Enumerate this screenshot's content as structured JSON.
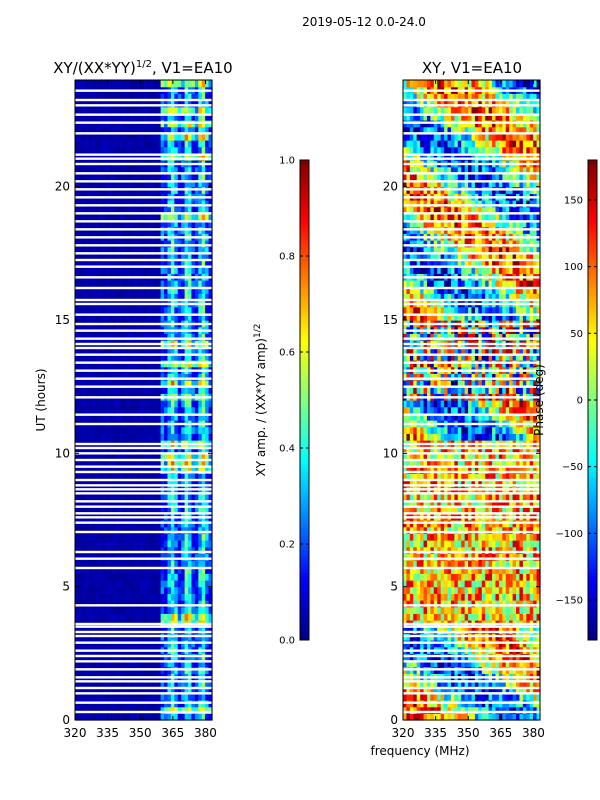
{
  "figure": {
    "suptitle": "2019-05-12 0.0-24.0",
    "shared_xlabel": "frequency (MHz)"
  },
  "chart_data": [
    {
      "type": "heatmap",
      "title_main": "XY/(XX*YY)",
      "title_sup": "1/2",
      "title_tail": ", V1=EA10",
      "xlabel": "",
      "ylabel": "UT (hours)",
      "xlim": [
        320,
        383
      ],
      "ylim": [
        0,
        24
      ],
      "xticks": [
        320,
        335,
        350,
        365,
        380
      ],
      "yticks": [
        0,
        5,
        10,
        15,
        20
      ],
      "colormap": "jet",
      "colorbar": {
        "label_main": "XY amp. / (XX*YY amp)",
        "label_sup": "1/2",
        "range": [
          0.0,
          1.0
        ],
        "ticks": [
          "0.0",
          "0.2",
          "0.4",
          "0.6",
          "0.8",
          "1.0"
        ]
      },
      "description_values": {
        "low_band_value": 0.02,
        "active_band_mhz": [
          360,
          382
        ],
        "active_band_value_range": [
          0.1,
          0.8
        ]
      }
    },
    {
      "type": "heatmap",
      "title": "XY, V1=EA10",
      "xlabel": "frequency (MHz)",
      "ylabel": "",
      "xlim": [
        320,
        383
      ],
      "ylim": [
        0,
        24
      ],
      "xticks": [
        320,
        335,
        350,
        365,
        380
      ],
      "yticks": [
        0,
        5,
        10,
        15,
        20
      ],
      "colormap": "jet",
      "colorbar": {
        "label": "Phase (deg)",
        "range": [
          -180,
          180
        ],
        "ticks": [
          "150",
          "100",
          "50",
          "0",
          "−50",
          "−100",
          "−150"
        ]
      }
    }
  ],
  "flagged_hours": [
    0.3,
    0.65,
    1.0,
    1.2,
    1.45,
    1.6,
    1.9,
    2.2,
    2.4,
    2.6,
    2.9,
    3.15,
    3.3,
    3.5,
    3.6,
    4.3,
    5.7,
    6.05,
    6.3,
    7.05,
    7.4,
    7.6,
    7.75,
    8.0,
    8.2,
    8.5,
    8.65,
    8.8,
    9.0,
    9.3,
    9.5,
    9.75,
    10.0,
    10.2,
    10.35,
    11.1,
    11.45,
    12.1,
    12.5,
    12.8,
    13.1,
    13.4,
    13.7,
    13.95,
    14.1,
    14.3,
    14.6,
    14.85,
    15.2,
    15.6,
    15.75,
    16.2,
    16.6,
    17.0,
    17.25,
    17.5,
    17.8,
    18.1,
    18.4,
    18.7,
    19.0,
    19.3,
    19.6,
    19.9,
    20.2,
    20.5,
    20.85,
    21.05,
    21.2,
    22.0,
    22.4,
    22.7,
    23.05,
    23.25,
    23.6
  ]
}
